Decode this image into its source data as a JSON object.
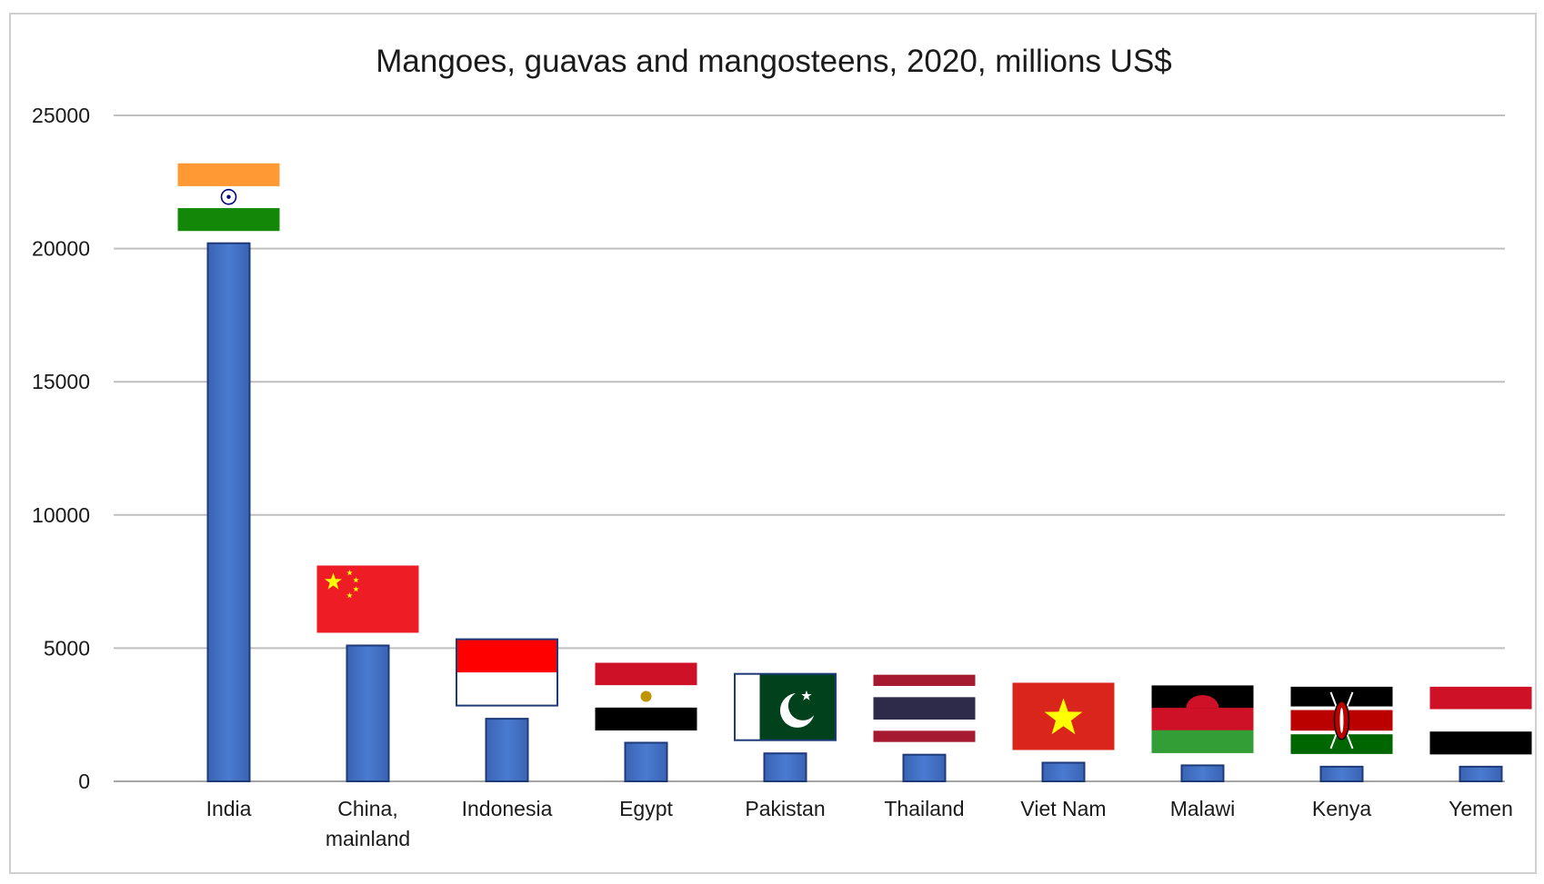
{
  "chart_data": {
    "type": "bar",
    "title": "Mangoes, guavas and mangosteens,  2020, millions US$",
    "xlabel": "",
    "ylabel": "",
    "ylim": [
      0,
      25000
    ],
    "yticks": [
      "0",
      "5000",
      "10000",
      "15000",
      "20000",
      "25000"
    ],
    "grid": true,
    "legend": "none",
    "categories": [
      "India",
      "China,\nmainland",
      "Indonesia",
      "Egypt",
      "Pakistan",
      "Thailand",
      "Viet Nam",
      "Malawi",
      "Kenya",
      "Yemen"
    ],
    "series": [
      {
        "values": [
          20200,
          5100,
          2350,
          1450,
          1050,
          1000,
          700,
          600,
          550,
          550
        ]
      }
    ],
    "flags": [
      "india-flag",
      "china-flag",
      "indonesia-flag",
      "egypt-flag",
      "pakistan-flag",
      "thailand-flag",
      "vietnam-flag",
      "malawi-flag",
      "kenya-flag",
      "yemen-flag"
    ],
    "colors": {
      "bar": "#4472C4",
      "bar_edge": "#1F3A78",
      "grid": "#bfbfbf",
      "axis": "#a6a6a6"
    }
  }
}
